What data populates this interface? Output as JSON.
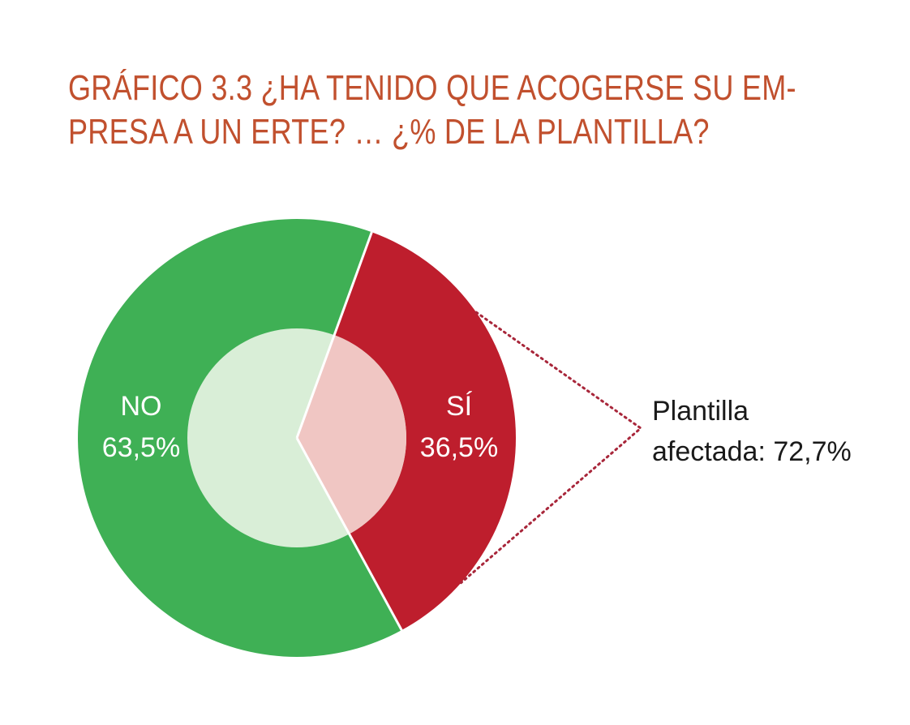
{
  "colors": {
    "title": "#c1502e",
    "no_outer": "#3fb055",
    "no_inner": "#d9eed7",
    "si_outer": "#be1e2d",
    "si_inner": "#f0c6c3",
    "connector": "#a8263a",
    "separator": "#ffffff"
  },
  "chart_data": {
    "type": "pie",
    "title_lines": [
      "GRÁFICO 3.3 ¿HA TENIDO QUE ACOGERSE SU EM-",
      "PRESA A UN ERTE? … ¿% DE LA PLANTILLA?"
    ],
    "slices": [
      {
        "name": "NO",
        "value": 63.5,
        "value_label": "63,5%"
      },
      {
        "name": "SÍ",
        "value": 36.5,
        "value_label": "36,5%"
      }
    ],
    "inner_pie": {
      "base_slice": "SÍ",
      "affected_fraction": 0.727
    },
    "annotation": {
      "lines": [
        "Plantilla",
        "afectada: 72,7%"
      ],
      "refers_to": "SÍ"
    }
  }
}
